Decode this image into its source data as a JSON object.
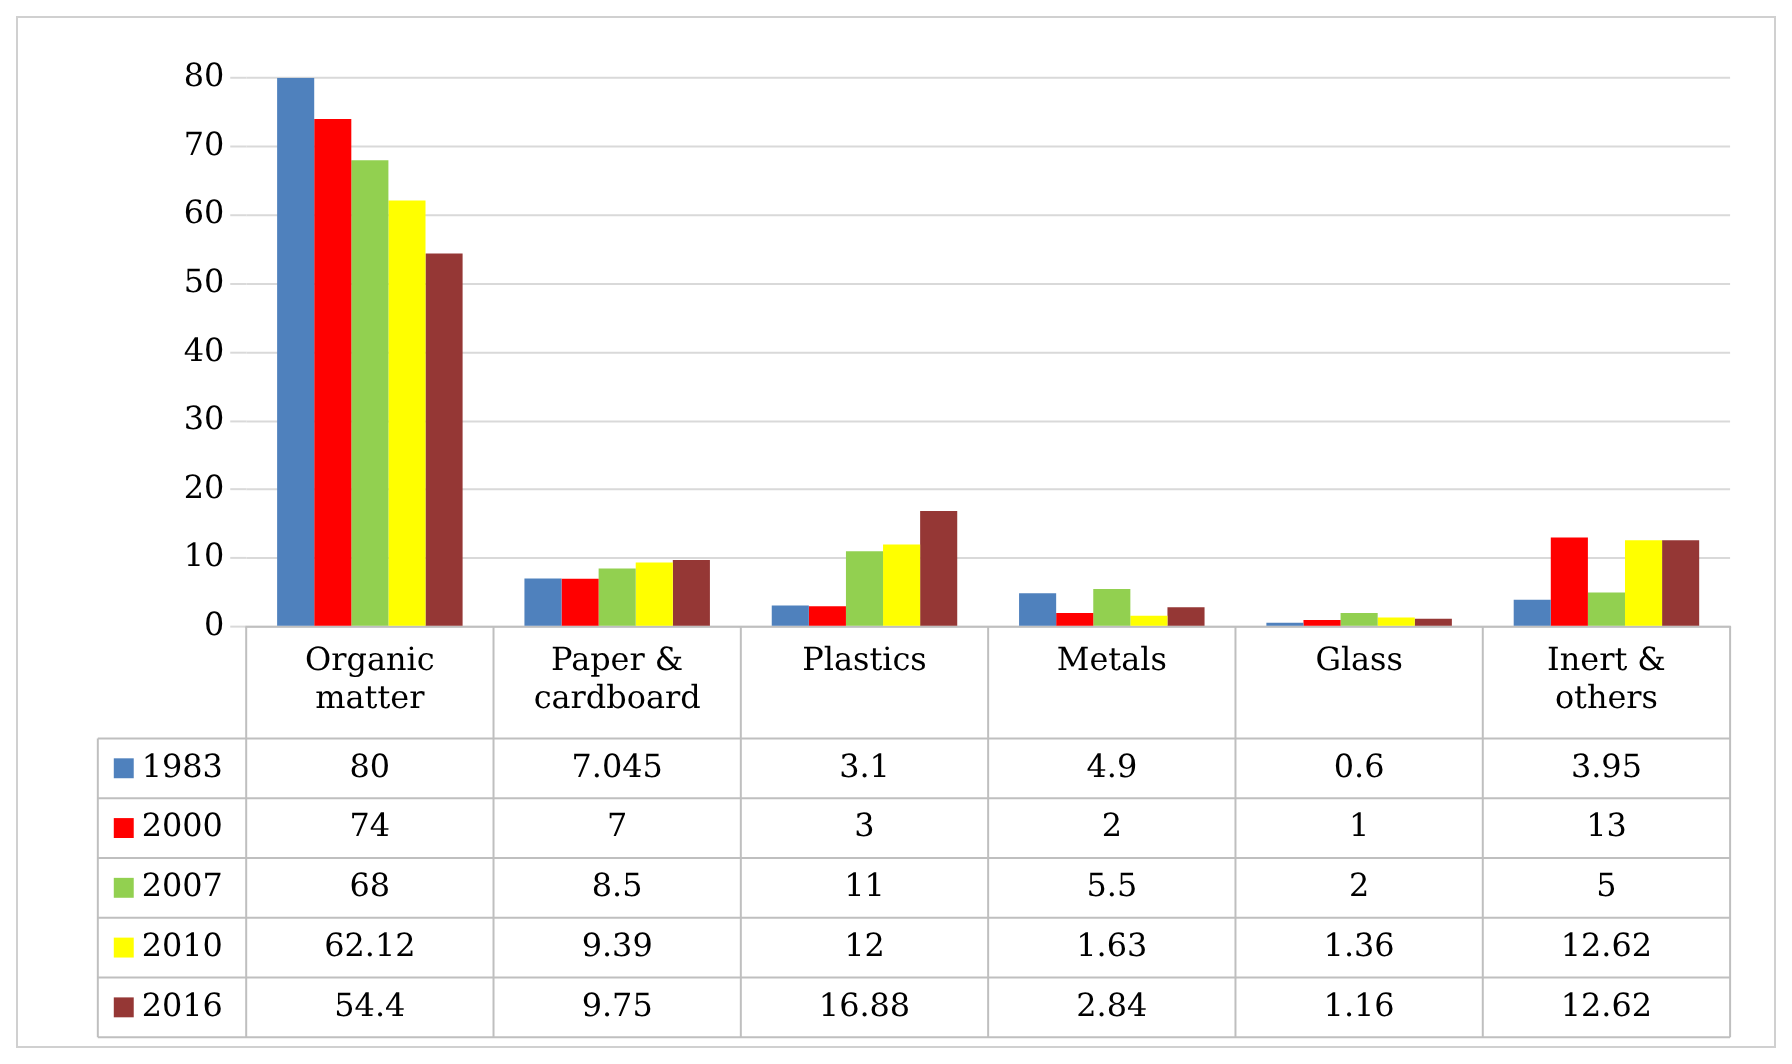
{
  "chart_data": {
    "type": "bar",
    "categories": [
      "Organic matter",
      "Paper & cardboard",
      "Plastics",
      "Metals",
      "Glass",
      "Inert & others"
    ],
    "series": [
      {
        "name": "1983",
        "color": "#4f81bd",
        "values": [
          80,
          7.045,
          3.1,
          4.9,
          0.6,
          3.95
        ]
      },
      {
        "name": "2000",
        "color": "#ff0000",
        "values": [
          74,
          7,
          3,
          2,
          1,
          13
        ]
      },
      {
        "name": "2007",
        "color": "#92d050",
        "values": [
          68,
          8.5,
          11,
          5.5,
          2,
          5
        ]
      },
      {
        "name": "2010",
        "color": "#ffff00",
        "values": [
          62.12,
          9.39,
          12,
          1.63,
          1.36,
          12.62
        ]
      },
      {
        "name": "2016",
        "color": "#953735",
        "values": [
          54.4,
          9.75,
          16.88,
          2.84,
          1.16,
          12.62
        ]
      }
    ],
    "ylim": [
      0,
      80
    ],
    "yticks": [
      0,
      10,
      20,
      30,
      40,
      50,
      60,
      70,
      80
    ],
    "grid": "y",
    "legend": "bottom",
    "data_labels": true
  }
}
